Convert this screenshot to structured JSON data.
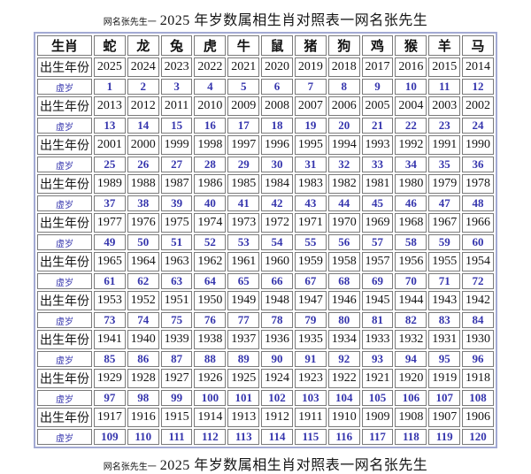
{
  "page": {
    "title_prefix": "网名张先生一",
    "title_main": "2025 年岁数属相生肖对照表一网名张先生",
    "footer_prefix": "网名张先生一",
    "footer_main": "2025 年岁数属相生肖对照表一网名张先生"
  },
  "table": {
    "corner_label": "生肖",
    "year_row_label": "出生年份",
    "age_row_label": "虚岁",
    "zodiacs": [
      "蛇",
      "龙",
      "兔",
      "虎",
      "牛",
      "鼠",
      "猪",
      "狗",
      "鸡",
      "猴",
      "羊",
      "马"
    ],
    "groups": [
      {
        "years": [
          "2025",
          "2024",
          "2023",
          "2022",
          "2021",
          "2020",
          "2019",
          "2018",
          "2017",
          "2016",
          "2015",
          "2014"
        ],
        "ages": [
          "1",
          "2",
          "3",
          "4",
          "5",
          "6",
          "7",
          "8",
          "9",
          "10",
          "11",
          "12"
        ]
      },
      {
        "years": [
          "2013",
          "2012",
          "2011",
          "2010",
          "2009",
          "2008",
          "2007",
          "2006",
          "2005",
          "2004",
          "2003",
          "2002"
        ],
        "ages": [
          "13",
          "14",
          "15",
          "16",
          "17",
          "18",
          "19",
          "20",
          "21",
          "22",
          "23",
          "24"
        ]
      },
      {
        "years": [
          "2001",
          "2000",
          "1999",
          "1998",
          "1997",
          "1996",
          "1995",
          "1994",
          "1993",
          "1992",
          "1991",
          "1990"
        ],
        "ages": [
          "25",
          "26",
          "27",
          "28",
          "29",
          "30",
          "31",
          "32",
          "33",
          "34",
          "35",
          "36"
        ]
      },
      {
        "years": [
          "1989",
          "1988",
          "1987",
          "1986",
          "1985",
          "1984",
          "1983",
          "1982",
          "1981",
          "1980",
          "1979",
          "1978"
        ],
        "ages": [
          "37",
          "38",
          "39",
          "40",
          "41",
          "42",
          "43",
          "44",
          "45",
          "46",
          "47",
          "48"
        ]
      },
      {
        "years": [
          "1977",
          "1976",
          "1975",
          "1974",
          "1973",
          "1972",
          "1971",
          "1970",
          "1969",
          "1968",
          "1967",
          "1966"
        ],
        "ages": [
          "49",
          "50",
          "51",
          "52",
          "53",
          "54",
          "55",
          "56",
          "57",
          "58",
          "59",
          "60"
        ]
      },
      {
        "years": [
          "1965",
          "1964",
          "1963",
          "1962",
          "1961",
          "1960",
          "1959",
          "1958",
          "1957",
          "1956",
          "1955",
          "1954"
        ],
        "ages": [
          "61",
          "62",
          "63",
          "64",
          "65",
          "66",
          "67",
          "68",
          "69",
          "70",
          "71",
          "72"
        ]
      },
      {
        "years": [
          "1953",
          "1952",
          "1951",
          "1950",
          "1949",
          "1948",
          "1947",
          "1946",
          "1945",
          "1944",
          "1943",
          "1942"
        ],
        "ages": [
          "73",
          "74",
          "75",
          "76",
          "77",
          "78",
          "79",
          "80",
          "81",
          "82",
          "83",
          "84"
        ]
      },
      {
        "years": [
          "1941",
          "1940",
          "1939",
          "1938",
          "1937",
          "1936",
          "1935",
          "1934",
          "1933",
          "1932",
          "1931",
          "1930"
        ],
        "ages": [
          "85",
          "86",
          "87",
          "88",
          "89",
          "90",
          "91",
          "92",
          "93",
          "94",
          "95",
          "96"
        ]
      },
      {
        "years": [
          "1929",
          "1928",
          "1927",
          "1926",
          "1925",
          "1924",
          "1923",
          "1922",
          "1921",
          "1920",
          "1919",
          "1918"
        ],
        "ages": [
          "97",
          "98",
          "99",
          "100",
          "101",
          "102",
          "103",
          "104",
          "105",
          "106",
          "107",
          "108"
        ]
      },
      {
        "years": [
          "1917",
          "1916",
          "1915",
          "1914",
          "1913",
          "1912",
          "1911",
          "1910",
          "1909",
          "1908",
          "1907",
          "1906"
        ],
        "ages": [
          "109",
          "110",
          "111",
          "112",
          "113",
          "114",
          "115",
          "116",
          "117",
          "118",
          "119",
          "120"
        ]
      }
    ]
  },
  "colors": {
    "outer_border": "#a2a9d3",
    "cell_border": "#7a7a7a",
    "year_text": "#141414",
    "age_text": "#3535ad",
    "background": "#ffffff"
  }
}
